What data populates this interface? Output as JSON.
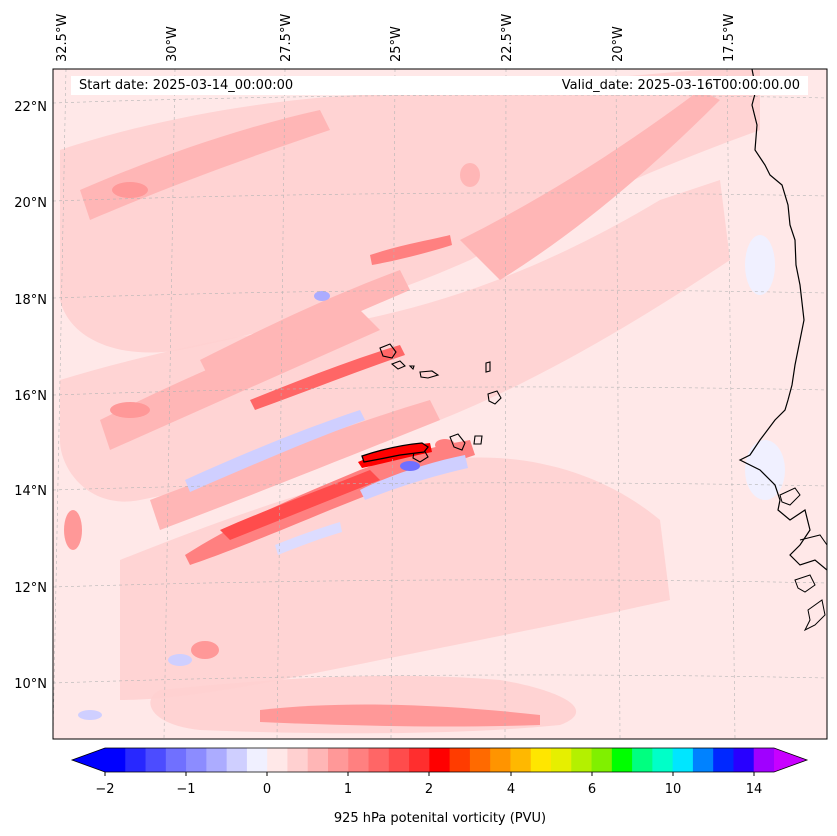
{
  "map": {
    "region": "Cabo Verde / West Africa",
    "projection": "rotated",
    "gridlines": true,
    "start_label": "Start date: 2025-03-14_00:00:00",
    "valid_label": "Valid_date: 2025-03-16T00:00:00.00",
    "lon_labels": [
      "32.5°W",
      "30°W",
      "27.5°W",
      "25°W",
      "22.5°W",
      "20°W",
      "17.5°W"
    ],
    "lat_labels": [
      "22°N",
      "20°N",
      "18°N",
      "16°N",
      "14°N",
      "12°N",
      "10°N"
    ],
    "colors": {
      "background_field": "#ffe8e8",
      "coastline": "#000000",
      "gridline": "#b4b4b4"
    }
  },
  "colorbar": {
    "label": "925 hPa potenital vorticity (PVU)",
    "ticks": [
      "−2",
      "−1",
      "0",
      "1",
      "2",
      "4",
      "6",
      "10",
      "14"
    ],
    "extend": "both",
    "colors": [
      "#0000ff",
      "#2828ff",
      "#4c4cff",
      "#7070ff",
      "#8c8cff",
      "#acacff",
      "#cfcfff",
      "#f0f0ff",
      "#ffe8e8",
      "#ffd0d0",
      "#ffb6b6",
      "#ff9898",
      "#ff8080",
      "#ff6666",
      "#ff4c4c",
      "#ff2e2e",
      "#ff0000",
      "#ff3c00",
      "#ff6a00",
      "#ff9400",
      "#ffb800",
      "#ffe600",
      "#e6ef00",
      "#b4f000",
      "#80f000",
      "#00ff00",
      "#00ff80",
      "#00ffc8",
      "#00e6ff",
      "#0082ff",
      "#0028ff",
      "#2800ff",
      "#a000ff"
    ],
    "min_color": "#0000ff",
    "max_color": "#c800ff"
  }
}
